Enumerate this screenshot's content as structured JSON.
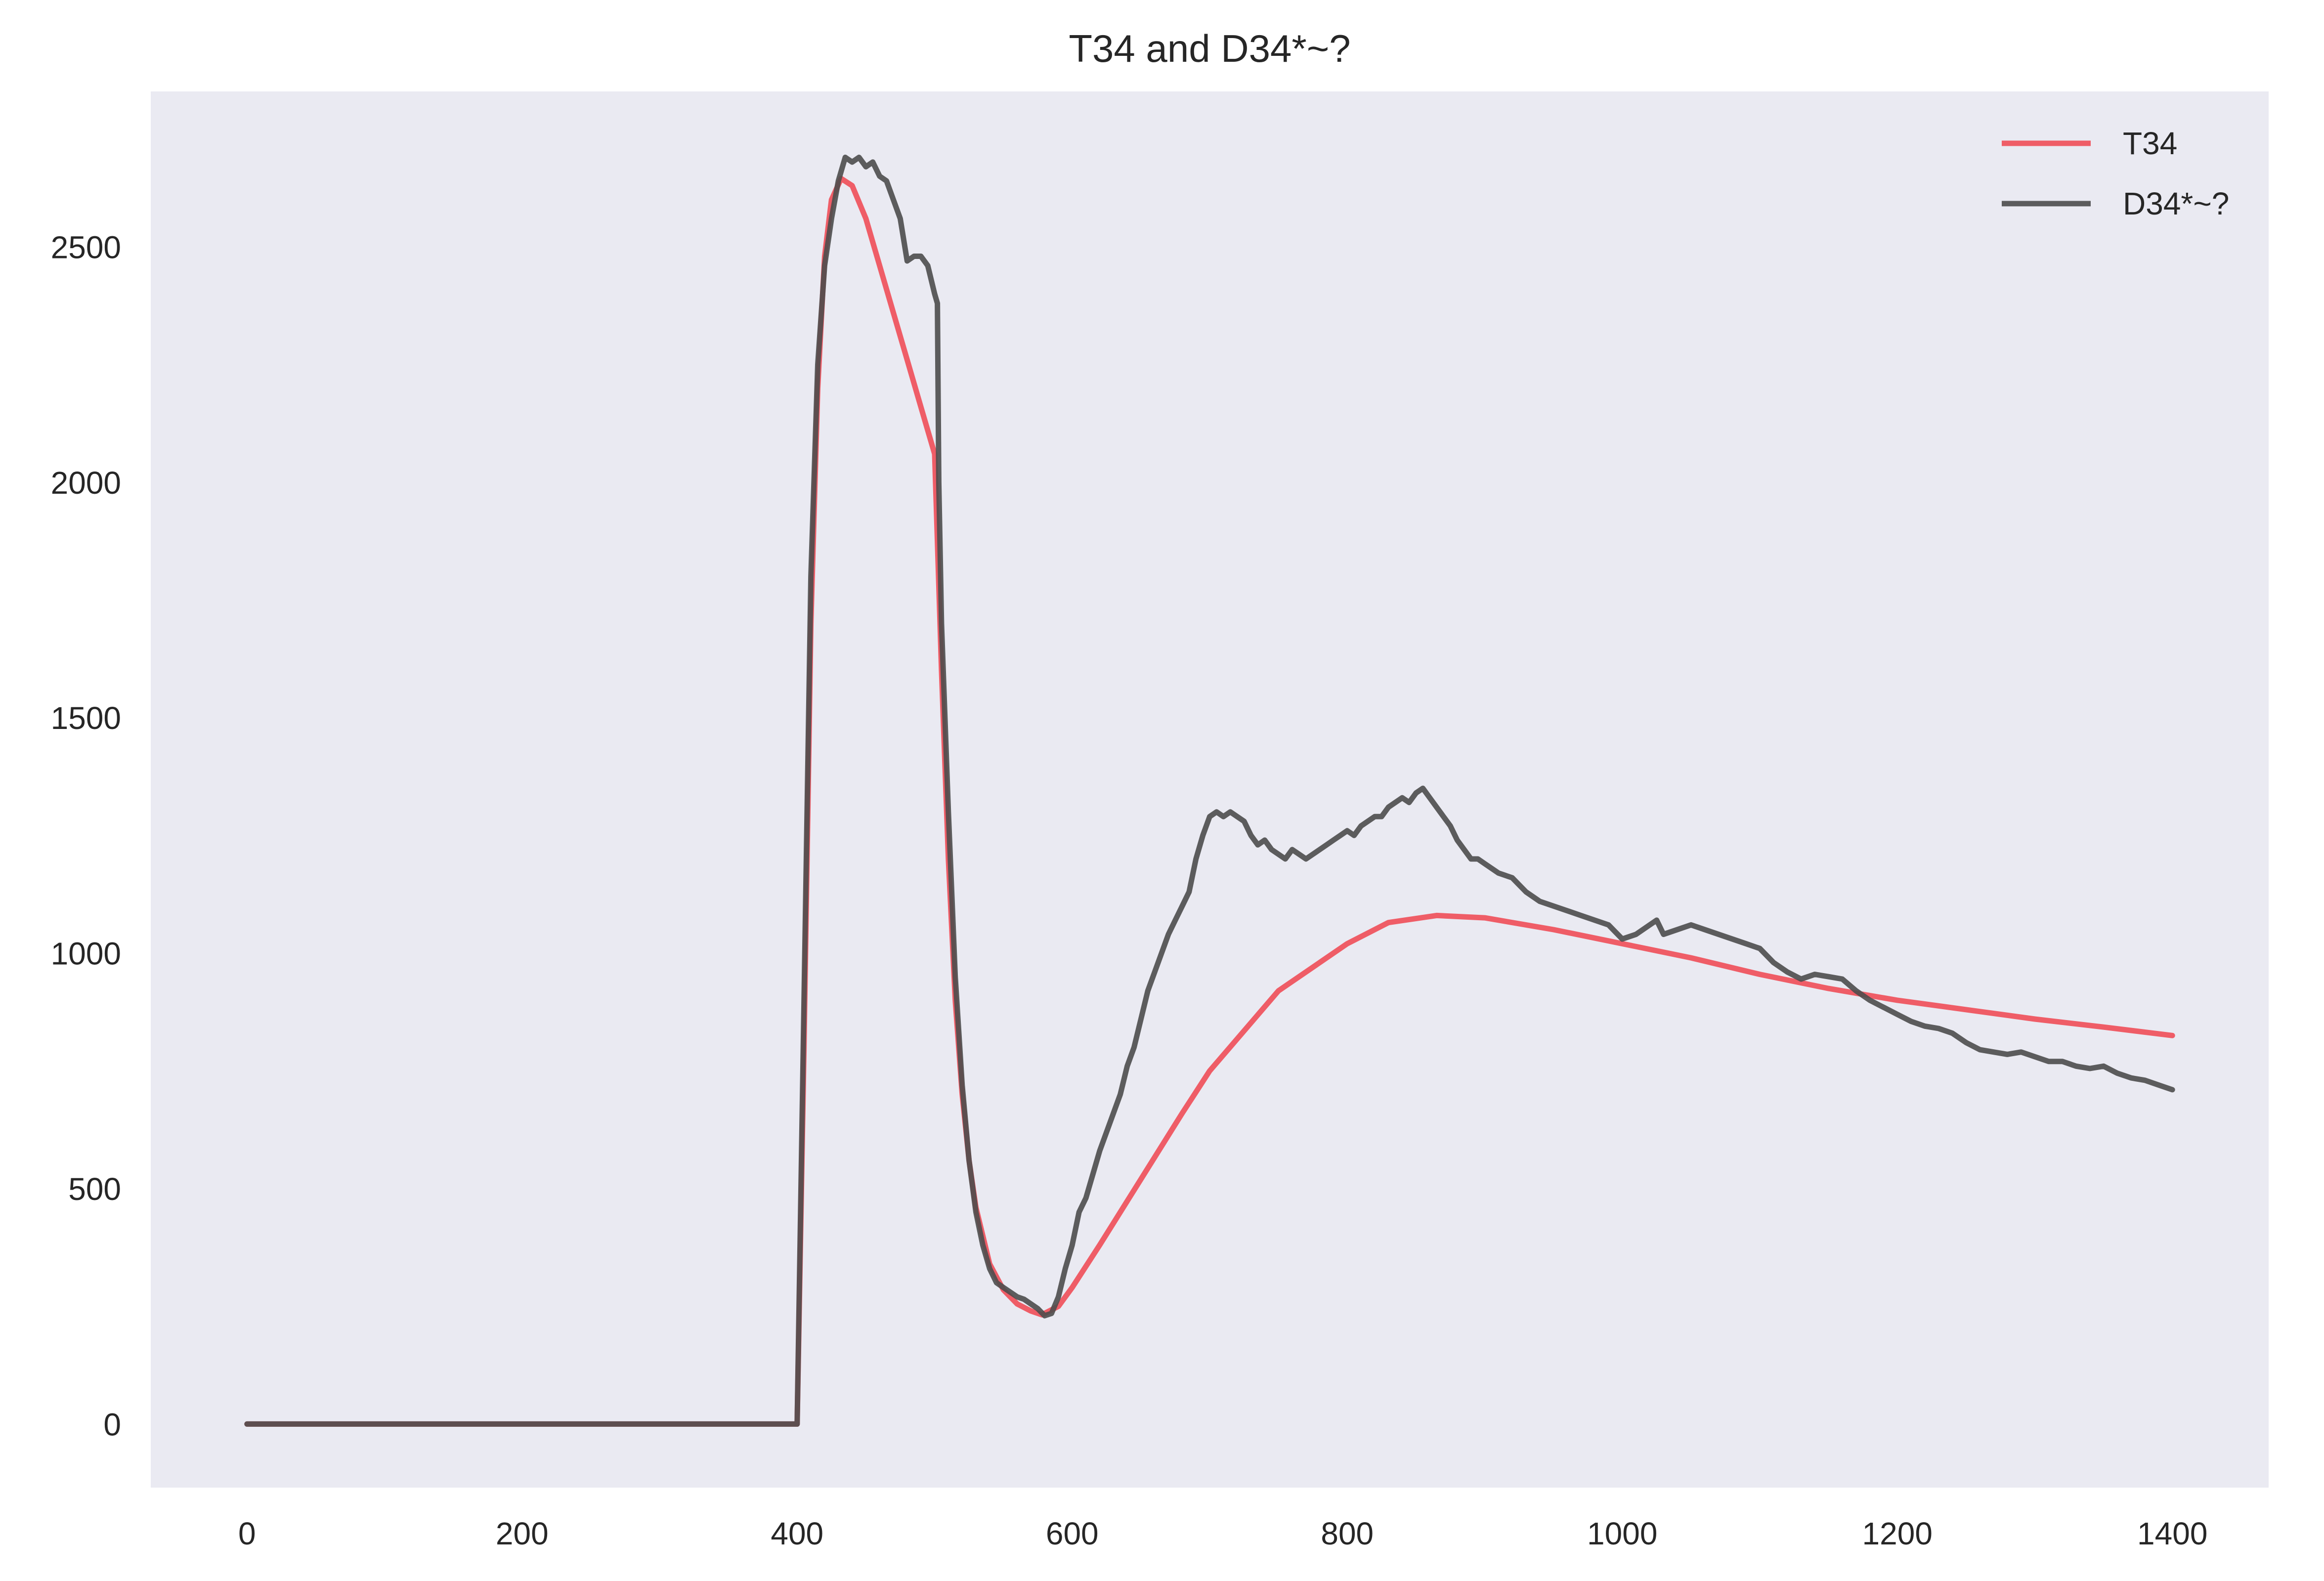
{
  "chart_data": {
    "type": "line",
    "title": "T34 and D34*~?",
    "xlabel": "",
    "ylabel": "",
    "xlim": [
      -70,
      1470
    ],
    "ylim": [
      -135,
      2830
    ],
    "xticks": [
      0,
      200,
      400,
      600,
      800,
      1000,
      1200,
      1400
    ],
    "yticks": [
      0,
      500,
      1000,
      1500,
      2000,
      2500
    ],
    "grid": false,
    "legend_position": "top-right",
    "background": "#EAEAF2",
    "series": [
      {
        "name": "T34",
        "color": "#F0444F",
        "points": [
          [
            0,
            0
          ],
          [
            100,
            0
          ],
          [
            200,
            0
          ],
          [
            300,
            0
          ],
          [
            399,
            0
          ],
          [
            400,
            0
          ],
          [
            405,
            800
          ],
          [
            410,
            1700
          ],
          [
            415,
            2200
          ],
          [
            420,
            2480
          ],
          [
            425,
            2600
          ],
          [
            432,
            2645
          ],
          [
            440,
            2630
          ],
          [
            450,
            2560
          ],
          [
            460,
            2460
          ],
          [
            470,
            2360
          ],
          [
            480,
            2260
          ],
          [
            490,
            2160
          ],
          [
            500,
            2060
          ],
          [
            505,
            1600
          ],
          [
            510,
            1200
          ],
          [
            515,
            900
          ],
          [
            520,
            700
          ],
          [
            525,
            560
          ],
          [
            530,
            460
          ],
          [
            540,
            340
          ],
          [
            550,
            285
          ],
          [
            560,
            255
          ],
          [
            570,
            240
          ],
          [
            578,
            232
          ],
          [
            590,
            250
          ],
          [
            600,
            290
          ],
          [
            620,
            380
          ],
          [
            650,
            520
          ],
          [
            680,
            660
          ],
          [
            700,
            750
          ],
          [
            750,
            920
          ],
          [
            800,
            1020
          ],
          [
            830,
            1065
          ],
          [
            865,
            1080
          ],
          [
            900,
            1075
          ],
          [
            950,
            1050
          ],
          [
            1000,
            1020
          ],
          [
            1050,
            990
          ],
          [
            1100,
            955
          ],
          [
            1150,
            925
          ],
          [
            1200,
            900
          ],
          [
            1250,
            880
          ],
          [
            1300,
            860
          ],
          [
            1350,
            843
          ],
          [
            1400,
            825
          ]
        ]
      },
      {
        "name": "D34*~?",
        "color": "#4C4C4C",
        "points": [
          [
            0,
            0
          ],
          [
            100,
            0
          ],
          [
            200,
            0
          ],
          [
            300,
            0
          ],
          [
            400,
            0
          ],
          [
            405,
            900
          ],
          [
            410,
            1800
          ],
          [
            415,
            2250
          ],
          [
            420,
            2460
          ],
          [
            425,
            2560
          ],
          [
            430,
            2640
          ],
          [
            435,
            2690
          ],
          [
            440,
            2680
          ],
          [
            445,
            2690
          ],
          [
            450,
            2670
          ],
          [
            455,
            2680
          ],
          [
            460,
            2650
          ],
          [
            465,
            2640
          ],
          [
            470,
            2600
          ],
          [
            475,
            2560
          ],
          [
            480,
            2470
          ],
          [
            485,
            2480
          ],
          [
            490,
            2480
          ],
          [
            495,
            2460
          ],
          [
            500,
            2400
          ],
          [
            502,
            2380
          ],
          [
            503,
            2000
          ],
          [
            505,
            1700
          ],
          [
            510,
            1300
          ],
          [
            515,
            950
          ],
          [
            520,
            720
          ],
          [
            525,
            560
          ],
          [
            530,
            450
          ],
          [
            535,
            380
          ],
          [
            540,
            330
          ],
          [
            545,
            300
          ],
          [
            550,
            290
          ],
          [
            555,
            280
          ],
          [
            560,
            270
          ],
          [
            565,
            265
          ],
          [
            570,
            255
          ],
          [
            575,
            245
          ],
          [
            580,
            230
          ],
          [
            585,
            235
          ],
          [
            590,
            270
          ],
          [
            595,
            330
          ],
          [
            600,
            380
          ],
          [
            605,
            450
          ],
          [
            610,
            480
          ],
          [
            615,
            530
          ],
          [
            620,
            580
          ],
          [
            625,
            620
          ],
          [
            630,
            660
          ],
          [
            635,
            700
          ],
          [
            640,
            760
          ],
          [
            645,
            800
          ],
          [
            650,
            860
          ],
          [
            655,
            920
          ],
          [
            660,
            960
          ],
          [
            665,
            1000
          ],
          [
            670,
            1040
          ],
          [
            675,
            1070
          ],
          [
            680,
            1100
          ],
          [
            685,
            1130
          ],
          [
            690,
            1200
          ],
          [
            695,
            1250
          ],
          [
            700,
            1290
          ],
          [
            705,
            1300
          ],
          [
            710,
            1290
          ],
          [
            715,
            1300
          ],
          [
            720,
            1290
          ],
          [
            725,
            1280
          ],
          [
            730,
            1250
          ],
          [
            735,
            1230
          ],
          [
            740,
            1240
          ],
          [
            745,
            1220
          ],
          [
            750,
            1210
          ],
          [
            755,
            1200
          ],
          [
            760,
            1220
          ],
          [
            765,
            1210
          ],
          [
            770,
            1200
          ],
          [
            775,
            1210
          ],
          [
            780,
            1220
          ],
          [
            785,
            1230
          ],
          [
            790,
            1240
          ],
          [
            795,
            1250
          ],
          [
            800,
            1260
          ],
          [
            805,
            1250
          ],
          [
            810,
            1270
          ],
          [
            815,
            1280
          ],
          [
            820,
            1290
          ],
          [
            825,
            1290
          ],
          [
            830,
            1310
          ],
          [
            835,
            1320
          ],
          [
            840,
            1330
          ],
          [
            845,
            1320
          ],
          [
            850,
            1340
          ],
          [
            855,
            1350
          ],
          [
            860,
            1330
          ],
          [
            865,
            1310
          ],
          [
            870,
            1290
          ],
          [
            875,
            1270
          ],
          [
            880,
            1240
          ],
          [
            885,
            1220
          ],
          [
            890,
            1200
          ],
          [
            895,
            1200
          ],
          [
            900,
            1190
          ],
          [
            910,
            1170
          ],
          [
            920,
            1160
          ],
          [
            930,
            1130
          ],
          [
            940,
            1110
          ],
          [
            950,
            1100
          ],
          [
            960,
            1090
          ],
          [
            970,
            1080
          ],
          [
            980,
            1070
          ],
          [
            990,
            1060
          ],
          [
            1000,
            1030
          ],
          [
            1010,
            1040
          ],
          [
            1020,
            1060
          ],
          [
            1025,
            1070
          ],
          [
            1030,
            1040
          ],
          [
            1040,
            1050
          ],
          [
            1050,
            1060
          ],
          [
            1060,
            1050
          ],
          [
            1070,
            1040
          ],
          [
            1080,
            1030
          ],
          [
            1090,
            1020
          ],
          [
            1100,
            1010
          ],
          [
            1110,
            980
          ],
          [
            1120,
            960
          ],
          [
            1130,
            945
          ],
          [
            1140,
            955
          ],
          [
            1150,
            950
          ],
          [
            1160,
            945
          ],
          [
            1170,
            920
          ],
          [
            1180,
            900
          ],
          [
            1190,
            885
          ],
          [
            1200,
            870
          ],
          [
            1210,
            855
          ],
          [
            1220,
            845
          ],
          [
            1230,
            840
          ],
          [
            1240,
            830
          ],
          [
            1250,
            810
          ],
          [
            1260,
            795
          ],
          [
            1270,
            790
          ],
          [
            1280,
            785
          ],
          [
            1290,
            790
          ],
          [
            1300,
            780
          ],
          [
            1310,
            770
          ],
          [
            1320,
            770
          ],
          [
            1330,
            760
          ],
          [
            1340,
            755
          ],
          [
            1350,
            760
          ],
          [
            1360,
            745
          ],
          [
            1370,
            735
          ],
          [
            1380,
            730
          ],
          [
            1390,
            720
          ],
          [
            1400,
            710
          ]
        ]
      }
    ]
  }
}
